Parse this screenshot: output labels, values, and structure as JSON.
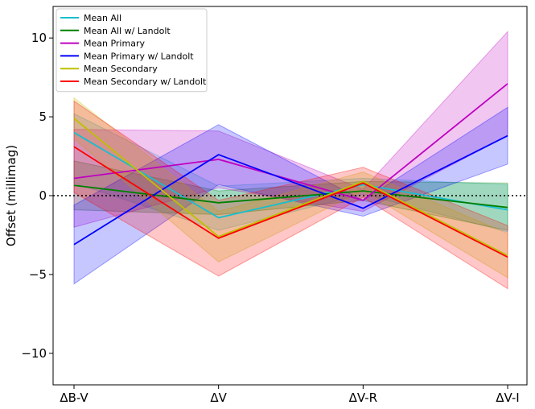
{
  "chart_data": {
    "type": "line",
    "title": "",
    "xlabel": "",
    "ylabel": "Offset (millimag)",
    "categories": [
      "ΔB-V",
      "ΔV",
      "ΔV-R",
      "ΔV-I"
    ],
    "ylim": [
      -12,
      12
    ],
    "yticks": [
      -10,
      -5,
      0,
      5,
      10
    ],
    "ytick_labels": [
      "−10",
      "−5",
      "0",
      "5",
      "10"
    ],
    "zero_line": {
      "y": 0,
      "style": "dotted"
    },
    "legend_position": "top-left",
    "series": [
      {
        "name": "Mean All",
        "color": "#17becf",
        "values": [
          4.0,
          -1.4,
          0.7,
          -0.9
        ],
        "lower": [
          0.8,
          -2.2,
          0.1,
          -2.3
        ],
        "upper": [
          5.2,
          0.6,
          1.1,
          0.7
        ]
      },
      {
        "name": "Mean All w/ Landolt",
        "color": "#008000",
        "values": [
          0.65,
          -0.45,
          0.3,
          -0.75
        ],
        "lower": [
          -0.9,
          -1.2,
          -0.3,
          -2.2
        ],
        "upper": [
          2.2,
          0.3,
          0.9,
          0.8
        ]
      },
      {
        "name": "Mean Primary",
        "color": "#bf00bf",
        "values": [
          1.1,
          2.3,
          -0.3,
          7.1
        ],
        "lower": [
          -2.0,
          0.5,
          -1.0,
          3.8
        ],
        "upper": [
          4.2,
          4.1,
          0.4,
          10.4
        ]
      },
      {
        "name": "Mean Primary w/ Landolt",
        "color": "#0000ff",
        "values": [
          -3.1,
          2.6,
          -0.8,
          3.8
        ],
        "lower": [
          -5.6,
          0.7,
          -1.3,
          2.0
        ],
        "upper": [
          -0.6,
          4.5,
          -0.3,
          5.6
        ]
      },
      {
        "name": "Mean Secondary",
        "color": "#bfbf00",
        "values": [
          4.9,
          -2.6,
          0.9,
          -3.8
        ],
        "lower": [
          3.6,
          -4.2,
          0.3,
          -5.2
        ],
        "upper": [
          6.2,
          -1.0,
          1.5,
          -2.4
        ]
      },
      {
        "name": "Mean Secondary w/ Landolt",
        "color": "#ff0000",
        "values": [
          3.1,
          -2.7,
          0.8,
          -3.9
        ],
        "lower": [
          0.2,
          -5.1,
          -0.1,
          -5.9
        ],
        "upper": [
          6.0,
          -0.3,
          1.8,
          -1.9
        ]
      }
    ]
  }
}
